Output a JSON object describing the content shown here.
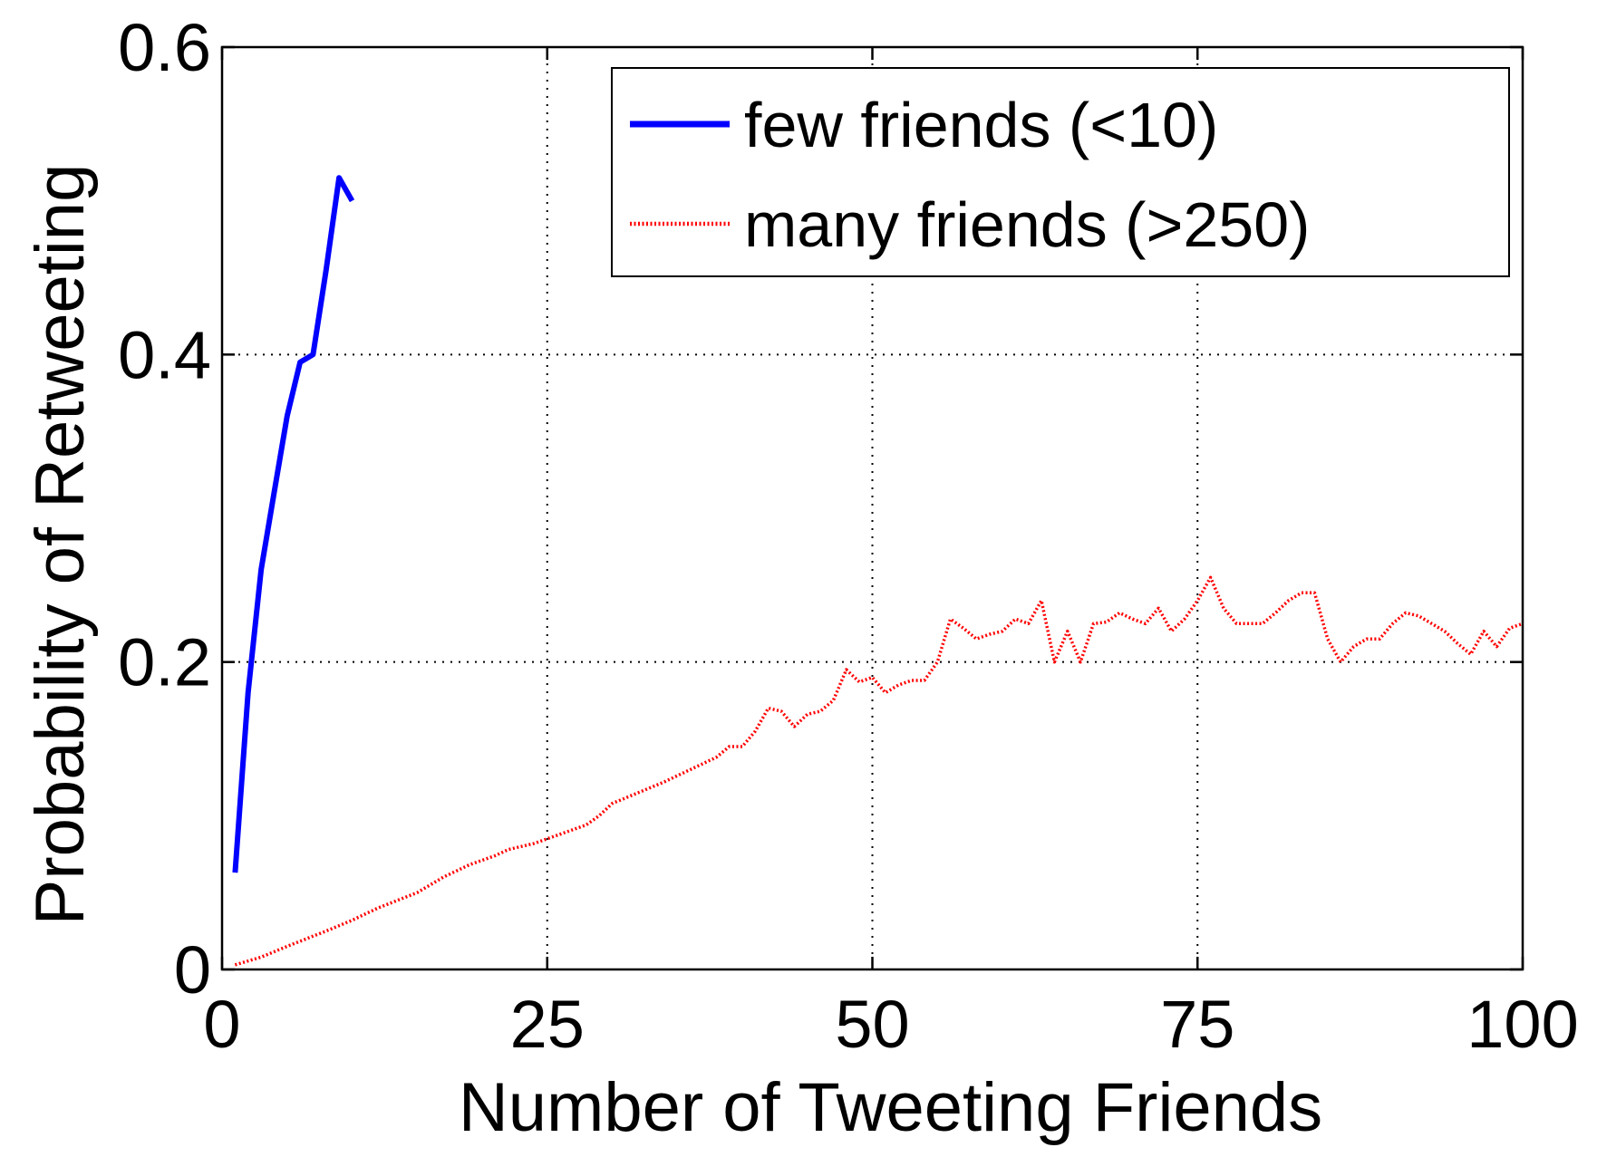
{
  "chart_data": {
    "type": "line",
    "title": "",
    "xlabel": "Number of Tweeting Friends",
    "ylabel": "Probability of Retweeting",
    "xlim": [
      0,
      100
    ],
    "ylim": [
      0,
      0.6
    ],
    "xticks": [
      0,
      25,
      50,
      75,
      100
    ],
    "yticks": [
      0,
      0.2,
      0.4,
      0.6
    ],
    "xtick_labels": [
      "0",
      "25",
      "50",
      "75",
      "100"
    ],
    "ytick_labels": [
      "0",
      "0.2",
      "0.4",
      "0.6"
    ],
    "grid": true,
    "legend_position": "top-right",
    "series": [
      {
        "name": "few friends (<10)",
        "color": "#0000ff",
        "line_style": "solid",
        "x": [
          1,
          2,
          3,
          4,
          5,
          6,
          7,
          8,
          9,
          10
        ],
        "y": [
          0.063,
          0.18,
          0.26,
          0.31,
          0.36,
          0.395,
          0.4,
          0.455,
          0.515,
          0.5
        ]
      },
      {
        "name": "many friends (>250)",
        "color": "#ff0000",
        "line_style": "dotted",
        "x": [
          1,
          3,
          5,
          8,
          10,
          12,
          15,
          17,
          19,
          21,
          22,
          24,
          26,
          28,
          29,
          30,
          32,
          34,
          36,
          38,
          39,
          40,
          41,
          42,
          43,
          44,
          45,
          46,
          47,
          48,
          49,
          50,
          51,
          52,
          53,
          54,
          55,
          56,
          57,
          58,
          59,
          60,
          61,
          62,
          63,
          64,
          65,
          66,
          67,
          68,
          69,
          70,
          71,
          72,
          73,
          74,
          75,
          76,
          77,
          78,
          79,
          80,
          81,
          82,
          83,
          84,
          85,
          86,
          87,
          88,
          89,
          90,
          91,
          92,
          93,
          94,
          95,
          96,
          97,
          98,
          99,
          100
        ],
        "y": [
          0.003,
          0.008,
          0.015,
          0.025,
          0.032,
          0.04,
          0.05,
          0.06,
          0.068,
          0.074,
          0.078,
          0.082,
          0.088,
          0.094,
          0.1,
          0.108,
          0.115,
          0.122,
          0.13,
          0.138,
          0.145,
          0.145,
          0.155,
          0.17,
          0.168,
          0.158,
          0.166,
          0.168,
          0.175,
          0.195,
          0.187,
          0.19,
          0.18,
          0.185,
          0.188,
          0.188,
          0.2,
          0.228,
          0.222,
          0.215,
          0.218,
          0.22,
          0.228,
          0.225,
          0.24,
          0.2,
          0.22,
          0.2,
          0.225,
          0.226,
          0.232,
          0.228,
          0.225,
          0.235,
          0.22,
          0.228,
          0.24,
          0.255,
          0.235,
          0.225,
          0.225,
          0.225,
          0.232,
          0.24,
          0.245,
          0.245,
          0.215,
          0.2,
          0.21,
          0.215,
          0.215,
          0.225,
          0.232,
          0.23,
          0.225,
          0.22,
          0.212,
          0.205,
          0.22,
          0.21,
          0.222,
          0.225
        ]
      }
    ]
  }
}
